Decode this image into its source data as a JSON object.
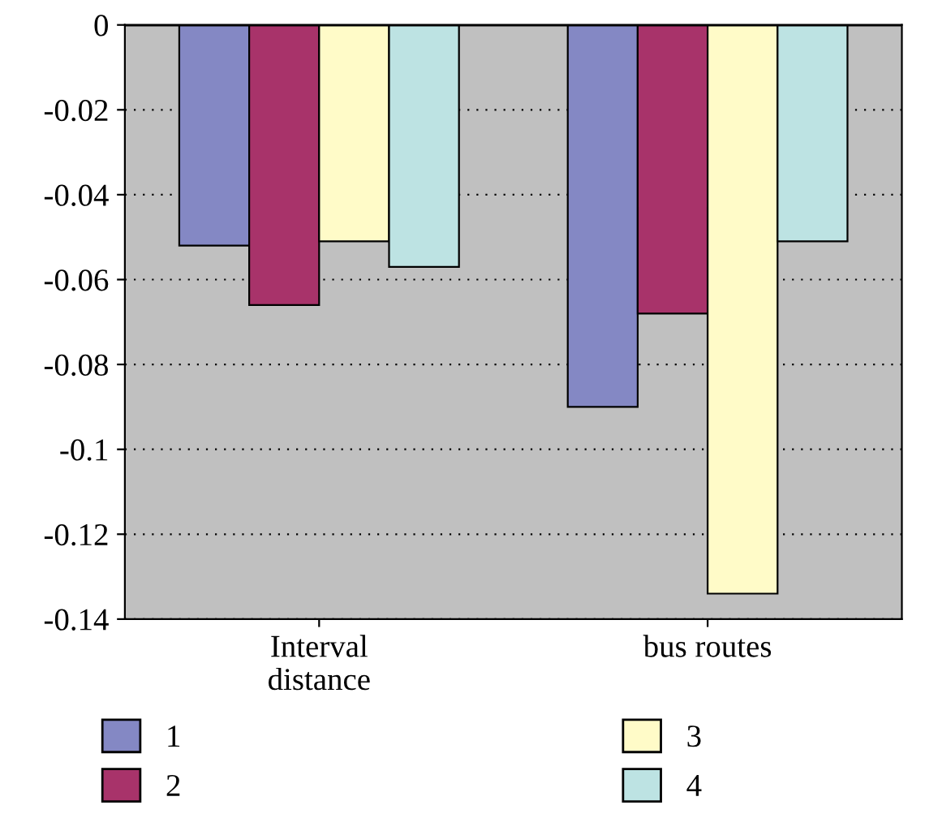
{
  "chart_data": {
    "type": "bar",
    "categories": [
      "Interval\ndistance",
      "bus routes"
    ],
    "series": [
      {
        "name": "1",
        "color": "#8488c4",
        "values": [
          -0.052,
          -0.09
        ]
      },
      {
        "name": "2",
        "color": "#a8336a",
        "values": [
          -0.066,
          -0.068
        ]
      },
      {
        "name": "3",
        "color": "#fffbc8",
        "values": [
          -0.051,
          -0.134
        ]
      },
      {
        "name": "4",
        "color": "#bde3e3",
        "values": [
          -0.057,
          -0.051
        ]
      }
    ],
    "ylim": [
      -0.14,
      0
    ],
    "yticks": [
      0,
      -0.02,
      -0.04,
      -0.06,
      -0.08,
      -0.1,
      -0.12,
      -0.14
    ],
    "grid": "y",
    "legend": "bottom"
  }
}
